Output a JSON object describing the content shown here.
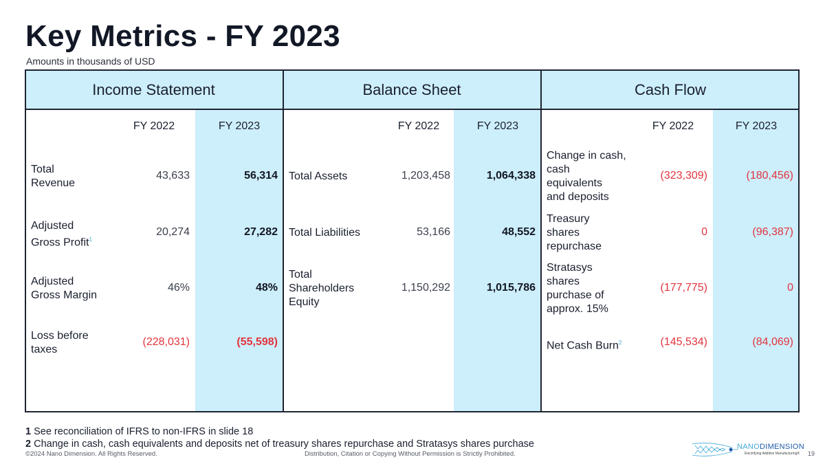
{
  "title": "Key Metrics - FY 2023",
  "subtitle": "Amounts in thousands of USD",
  "sections": {
    "income": "Income Statement",
    "balance": "Balance Sheet",
    "cash": "Cash Flow"
  },
  "col_fy2022": "FY 2022",
  "col_fy2023": "FY 2023",
  "income_rows": [
    {
      "label_l1": "Total",
      "label_l2": "Revenue",
      "fy2022": "43,633",
      "fy2023": "56,314"
    },
    {
      "label_l1": "Adjusted",
      "label_l2": "Gross Profit",
      "fy2022": "20,274",
      "fy2023": "27,282"
    },
    {
      "label_l1": "Adjusted",
      "label_l2": "Gross Margin",
      "fy2022": "46%",
      "fy2023": "48%"
    },
    {
      "label_l1": "Loss before",
      "label_l2": "taxes",
      "fy2022": "(228,031)",
      "fy2023": "(55,598)"
    }
  ],
  "balance_rows": [
    {
      "label_l1": "Total Assets",
      "fy2022": "1,203,458",
      "fy2023": "1,064,338"
    },
    {
      "label_l1": "Total Liabilities",
      "fy2022": "53,166",
      "fy2023": "48,552"
    },
    {
      "label_l1": "Total",
      "label_l2": "Shareholders",
      "label_l3": "Equity",
      "fy2022": "1,150,292",
      "fy2023": "1,015,786"
    }
  ],
  "cash_rows": [
    {
      "label_l1": "Change in cash,",
      "label_l2": "cash",
      "label_l3": "equivalents",
      "label_l4": "and deposits",
      "fy2022": "(323,309)",
      "fy2023": "(180,456)"
    },
    {
      "label_l1": "Treasury",
      "label_l2": "shares",
      "label_l3": "repurchase",
      "fy2022": "0",
      "fy2023": "(96,387)"
    },
    {
      "label_l1": "Stratasys",
      "label_l2": "shares",
      "label_l3": "purchase of",
      "label_l4": "approx. 15%",
      "fy2022": "(177,775)",
      "fy2023": "0"
    },
    {
      "label_l1": "Net Cash Burn",
      "fy2022": "(145,534)",
      "fy2023": "(84,069)"
    }
  ],
  "footnote_marks": {
    "one": "1",
    "two": "2"
  },
  "footnotes": [
    {
      "num": "1",
      "text": " See reconciliation of IFRS to non-IFRS in slide 18"
    },
    {
      "num": "2",
      "text": " Change in cash, cash equivalents and deposits net of treasury shares repurchase and Stratasys shares purchase"
    }
  ],
  "copyright": "©2024 Nano Dimension. All Rights Reserved.",
  "distribution": "Distribution, Citation or Copying Without Permission is Strictly Prohibited.",
  "logo": {
    "nano": "NANO",
    "dimension": "DIMENSION",
    "tagline": "Electrifying Additive Manufacturing®"
  },
  "page_number": "19",
  "colors": {
    "highlight": "#cdeefb",
    "negative": "#e2343c",
    "rule": "#1d2330"
  }
}
